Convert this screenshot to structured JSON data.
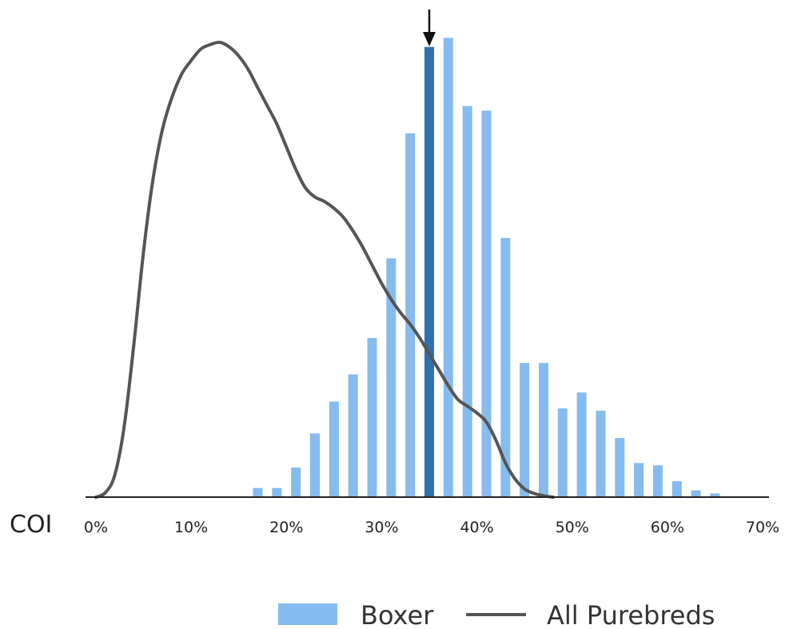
{
  "chart_data": {
    "type": "bar",
    "xlabel": "COI",
    "x_ticks": [
      "0%",
      "10%",
      "20%",
      "30%",
      "40%",
      "50%",
      "60%",
      "70%"
    ],
    "xlim": [
      0,
      70
    ],
    "ylim": [
      0,
      100
    ],
    "grid": false,
    "legend_position": "bottom-right",
    "highlight_marker": "arrow",
    "highlight_x": 35,
    "series": [
      {
        "name": "Boxer",
        "type": "bar",
        "color": "#85bbee",
        "highlight_color": "#2f70b1",
        "x": [
          17,
          19,
          21,
          23,
          25,
          27,
          29,
          31,
          33,
          35,
          37,
          39,
          41,
          43,
          45,
          47,
          49,
          51,
          53,
          55,
          57,
          59,
          61,
          63,
          65
        ],
        "values": [
          2,
          2,
          6.5,
          14,
          21,
          27,
          35,
          52.5,
          80,
          99,
          101,
          86,
          85,
          57,
          29.5,
          29.5,
          19.5,
          23,
          19,
          13,
          7.5,
          7,
          3.5,
          1.5,
          0.8
        ]
      },
      {
        "name": "All Purebreds",
        "type": "line",
        "color": "#555555",
        "x": [
          0,
          1,
          2,
          3,
          4,
          5,
          6,
          7,
          8,
          9,
          10,
          11,
          12,
          13,
          14,
          15,
          16,
          17,
          18,
          19,
          20,
          21,
          22,
          23,
          24,
          25,
          26,
          27,
          28,
          29,
          30,
          31,
          32,
          33,
          34,
          35,
          36,
          37,
          38,
          39,
          40,
          41,
          42,
          43,
          44,
          45,
          46,
          47,
          48
        ],
        "values": [
          0,
          1,
          5,
          16,
          34,
          54,
          70,
          81,
          88,
          93,
          96,
          98.5,
          99.5,
          100,
          99,
          97,
          94,
          90,
          86,
          82,
          77,
          72,
          68,
          66,
          65,
          63.5,
          61.5,
          58.5,
          55,
          51,
          47,
          43.5,
          40.5,
          38,
          35,
          31.5,
          28,
          24.5,
          21.5,
          20,
          18.5,
          16.5,
          12.5,
          7.5,
          4,
          1.8,
          0.8,
          0.3,
          0
        ]
      }
    ]
  },
  "legend": {
    "boxer_label": "Boxer",
    "purebreds_label": "All Purebreds"
  }
}
